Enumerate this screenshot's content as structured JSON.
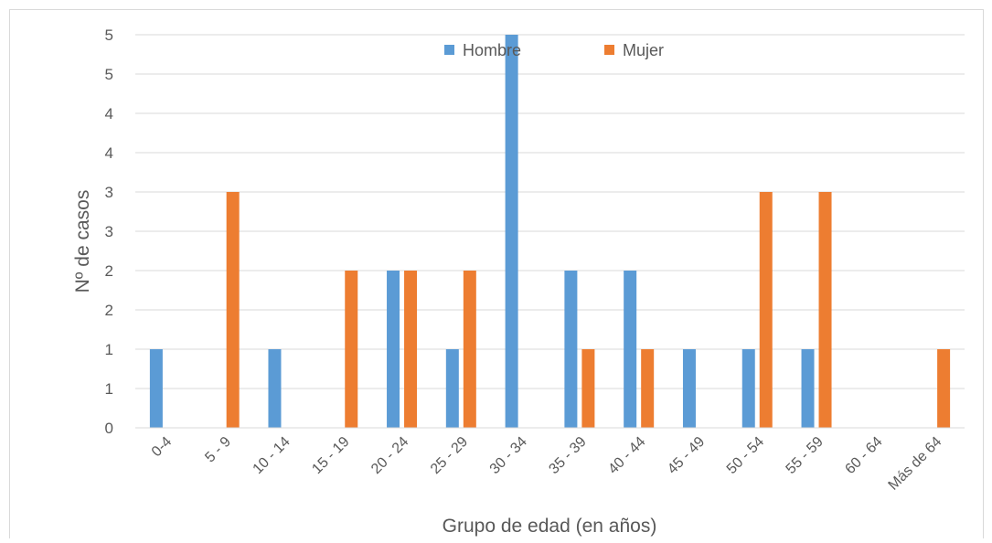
{
  "chart_data": {
    "type": "bar",
    "categories": [
      "0-4",
      "5 - 9",
      "10 - 14",
      "15 - 19",
      "20 - 24",
      "25 - 29",
      "30 - 34",
      "35 - 39",
      "40 - 44",
      "45 - 49",
      "50 - 54",
      "55 - 59",
      "60 - 64",
      "Más de 64"
    ],
    "series": [
      {
        "name": "Hombre",
        "color": "#5b9bd5",
        "values": [
          1,
          0,
          1,
          0,
          2,
          1,
          5,
          2,
          2,
          1,
          1,
          1,
          0,
          0
        ]
      },
      {
        "name": "Mujer",
        "color": "#ed7d31",
        "values": [
          0,
          3,
          0,
          2,
          2,
          2,
          0,
          1,
          1,
          0,
          3,
          3,
          0,
          1
        ]
      }
    ],
    "y_tick_labels": [
      "0",
      "1",
      "1",
      "2",
      "2",
      "3",
      "3",
      "4",
      "4",
      "5",
      "5"
    ],
    "ylim": [
      0,
      5
    ],
    "xlabel": "Grupo de edad (en años)",
    "ylabel": "Nº de casos",
    "grid": true,
    "legend_position": "top-center"
  }
}
